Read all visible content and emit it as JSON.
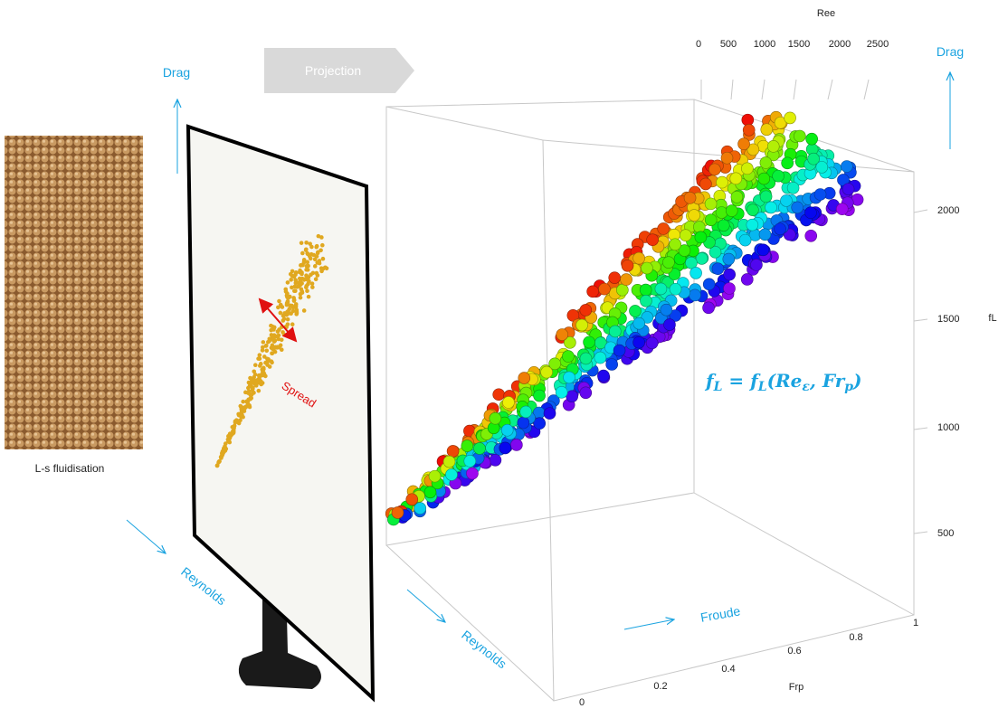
{
  "photo": {
    "caption": "L-s fluidisation"
  },
  "projection": {
    "label": "Projection"
  },
  "screen": {
    "annotation": "Spread",
    "drag": "Drag",
    "reynolds": "Reynolds"
  },
  "plot3d": {
    "top_axis_title": "Ree",
    "top_ticks": [
      0,
      500,
      1000,
      1500,
      2000,
      2500
    ],
    "right_axis_title": "fL",
    "right_ticks": [
      2000,
      1500,
      1000,
      500
    ],
    "bottom_axis_title": "Frp",
    "bottom_ticks": [
      0,
      0.2,
      0.4,
      0.6,
      0.8,
      1
    ],
    "drag": "Drag",
    "froude": "Froude",
    "reynolds": "Reynolds",
    "equation": [
      {
        "text": "f"
      },
      {
        "sub": "L"
      },
      {
        "text": " = f"
      },
      {
        "sub": "L"
      },
      {
        "text": "(Re"
      },
      {
        "sub": "ε"
      },
      {
        "text": ", Fr"
      },
      {
        "sub": "p"
      },
      {
        "text": ")"
      }
    ]
  }
}
